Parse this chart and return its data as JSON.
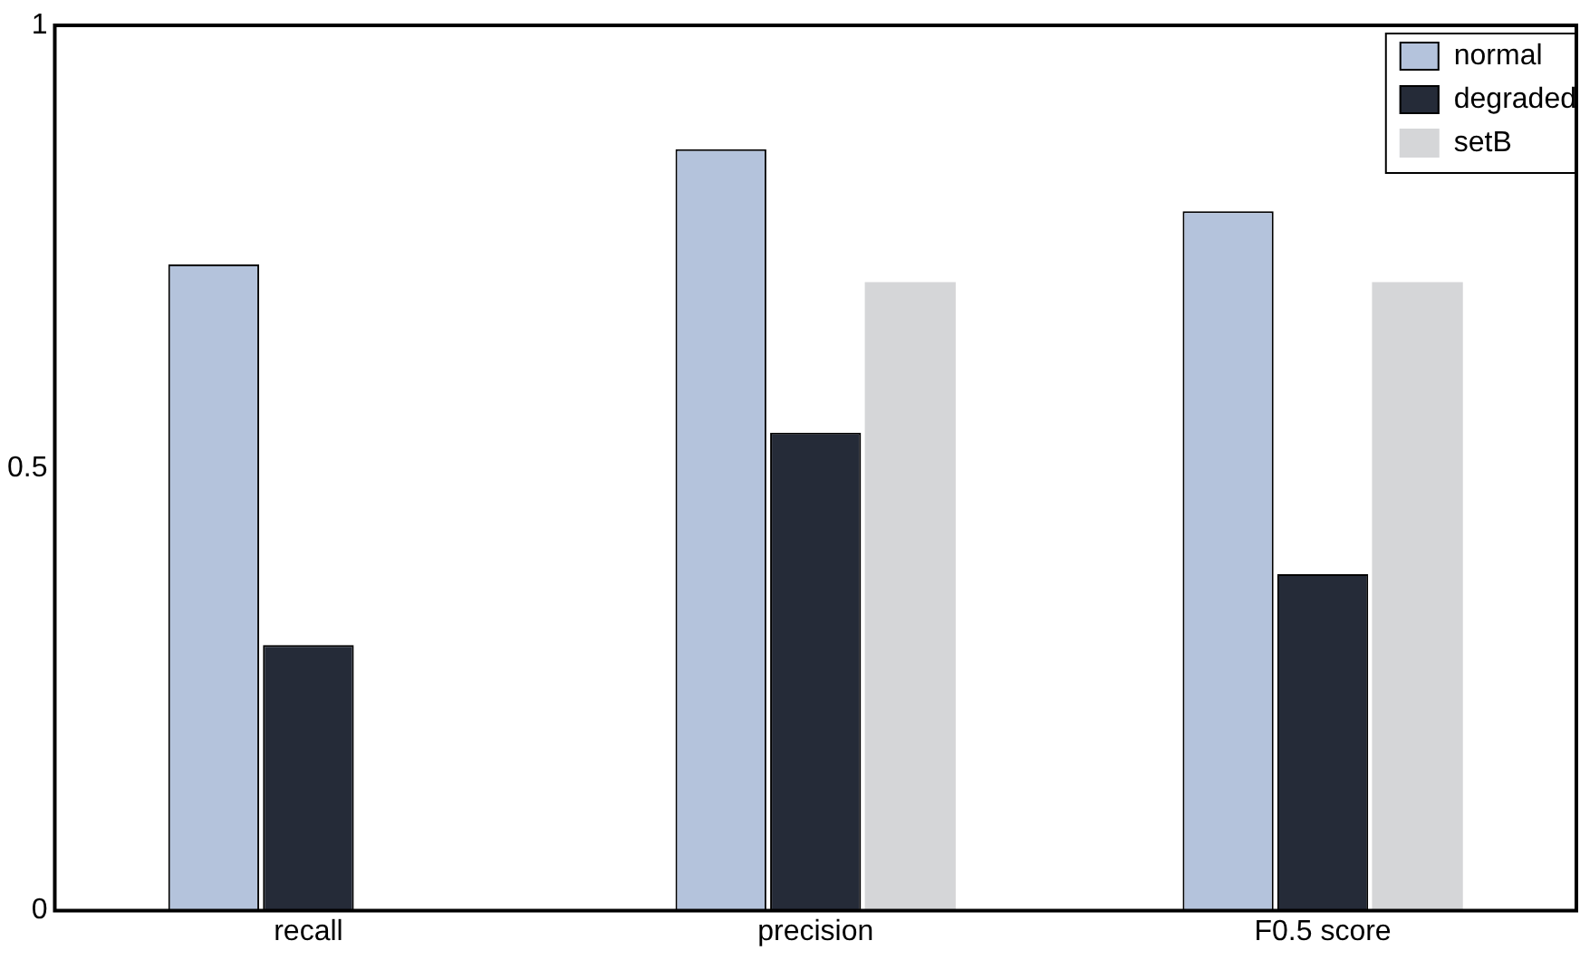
{
  "chart_data": {
    "type": "bar",
    "categories": [
      "recall",
      "precision",
      "F0.5 score"
    ],
    "series": [
      {
        "name": "normal",
        "color": "#b4c3dc",
        "values": [
          0.73,
          0.86,
          0.79
        ]
      },
      {
        "name": "degraded",
        "color": "#252b38",
        "values": [
          0.3,
          0.54,
          0.38
        ]
      },
      {
        "name": "setB",
        "color": "#d5d6d8",
        "values": [
          null,
          0.71,
          0.71
        ]
      }
    ],
    "ylim": [
      0,
      1
    ],
    "yticks": [
      0,
      0.5,
      1
    ],
    "grid": false,
    "legend": "top right"
  }
}
